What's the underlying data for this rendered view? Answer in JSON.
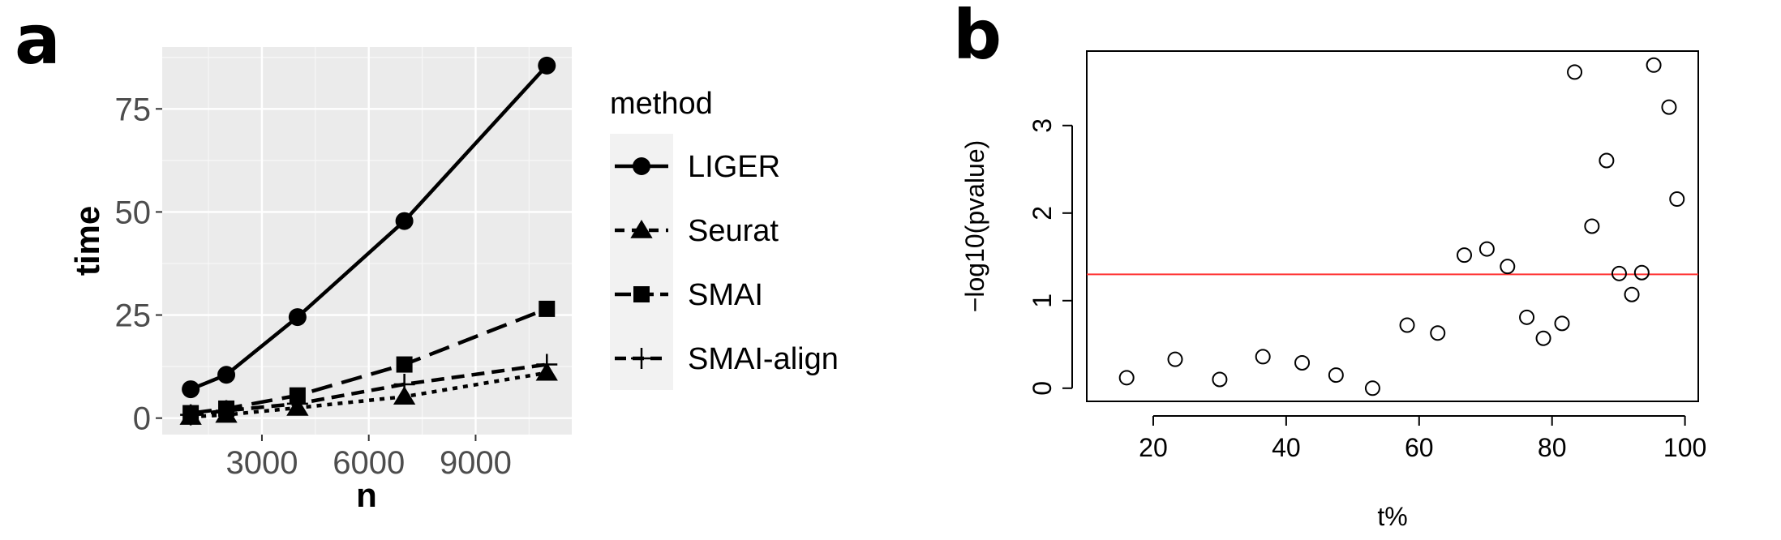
{
  "panels": {
    "a": "a",
    "b": "b"
  },
  "chart_data": [
    {
      "type": "line",
      "panel": "a",
      "xlabel": "n",
      "ylabel": "time",
      "xlim": [
        200,
        11700
      ],
      "ylim": [
        -4,
        90
      ],
      "xticks": [
        3000,
        6000,
        9000
      ],
      "xtick_labels": [
        "3000",
        "6000",
        "9000"
      ],
      "yticks": [
        0,
        25,
        50,
        75
      ],
      "ytick_labels": [
        "0",
        "25",
        "50",
        "75"
      ],
      "grid": true,
      "x": [
        1000,
        2000,
        4000,
        7000,
        11000
      ],
      "legend_title": "method",
      "legend_position": "right",
      "series": [
        {
          "name": "LIGER",
          "values": [
            7,
            10.5,
            24.5,
            47.8,
            85.5
          ],
          "marker": "circle",
          "linestyle": "solid"
        },
        {
          "name": "Seurat",
          "values": [
            0.3,
            0.8,
            2.5,
            5.2,
            11
          ],
          "marker": "triangle",
          "linestyle": "dotted"
        },
        {
          "name": "SMAI",
          "values": [
            1.2,
            2.3,
            5.5,
            13,
            26.5
          ],
          "marker": "square",
          "linestyle": "longdash"
        },
        {
          "name": "SMAI-align",
          "values": [
            0.8,
            1.8,
            3.5,
            8.2,
            13
          ],
          "marker": "plus",
          "linestyle": "dashed"
        }
      ]
    },
    {
      "type": "scatter",
      "panel": "b",
      "xlabel": "t%",
      "ylabel": "−log10(pvalue)",
      "xlim": [
        10,
        102
      ],
      "ylim": [
        -0.15,
        3.85
      ],
      "xticks": [
        20,
        40,
        60,
        80,
        100
      ],
      "xtick_labels": [
        "20",
        "40",
        "60",
        "80",
        "100"
      ],
      "yticks": [
        0,
        1,
        2,
        3
      ],
      "ytick_labels": [
        "0",
        "1",
        "2",
        "3"
      ],
      "hline": {
        "y": 1.3,
        "color": "#ff3333"
      },
      "x": [
        16,
        23.3,
        30,
        36.5,
        42.4,
        47.5,
        53,
        58.2,
        62.8,
        66.8,
        70.2,
        73.3,
        76.2,
        78.7,
        81.5,
        83.4,
        86,
        88.2,
        90.1,
        92,
        93.5,
        95.3,
        97.6,
        98.8
      ],
      "y": [
        0.12,
        0.33,
        0.1,
        0.36,
        0.29,
        0.15,
        0,
        0.72,
        0.63,
        1.52,
        1.59,
        1.39,
        0.81,
        0.57,
        0.74,
        3.61,
        1.85,
        2.6,
        1.31,
        1.07,
        1.32,
        3.69,
        3.21,
        2.16
      ]
    }
  ]
}
